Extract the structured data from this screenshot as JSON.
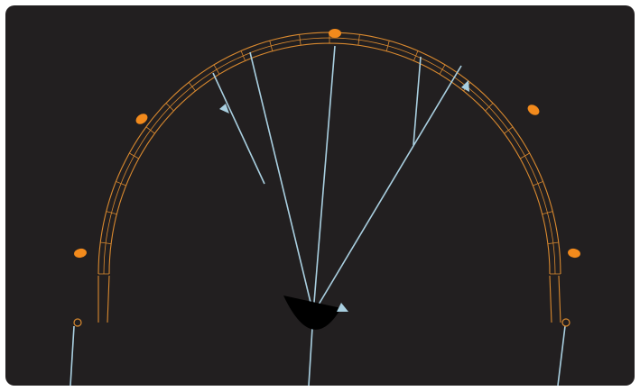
{
  "colors": {
    "background": "#221f20",
    "wing_outline": "#d9892f",
    "marker": "#f28a1c",
    "bridle_lines": "#a9cfe0"
  },
  "elements": {
    "wing": "kite-wing-wireframe",
    "markers": "tip-and-strut-markers",
    "bridles": "bridle-lines",
    "arrows": "rotation-arrows"
  }
}
